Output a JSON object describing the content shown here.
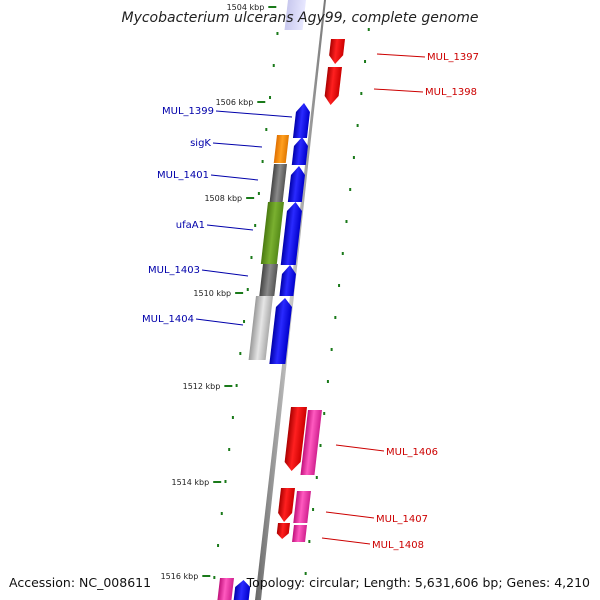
{
  "title": "Mycobacterium ulcerans Agy99, complete genome",
  "accession": "Accession: NC_008611",
  "summary": "Topology: circular; Length: 5,631,606 bp; Genes: 4,210",
  "colors": {
    "backbone": "#888888",
    "forward_gene": "#0000ee",
    "reverse_gene": "#e00000",
    "pink_gene": "#e0259b",
    "sigma_gene": "#ff8c00",
    "green_gene": "#5a9a1a",
    "gray_gene": "#666666",
    "lightgray_gene": "#bbbbbb",
    "tick": "#1a7a1a",
    "label_forward": "#0000aa",
    "label_reverse": "#cc0000"
  },
  "ticks": [
    {
      "label": "1504 kbp"
    },
    {
      "label": "1506 kbp"
    },
    {
      "label": "1508 kbp"
    },
    {
      "label": "1510 kbp"
    },
    {
      "label": "1512 kbp"
    },
    {
      "label": "1514 kbp"
    },
    {
      "label": "1516 kbp"
    }
  ],
  "labels": [
    {
      "text": "MUL_1397",
      "strand": "reverse"
    },
    {
      "text": "MUL_1398",
      "strand": "reverse"
    },
    {
      "text": "MUL_1399",
      "strand": "forward"
    },
    {
      "text": "sigK",
      "strand": "forward"
    },
    {
      "text": "MUL_1401",
      "strand": "forward"
    },
    {
      "text": "ufaA1",
      "strand": "forward"
    },
    {
      "text": "MUL_1403",
      "strand": "forward"
    },
    {
      "text": "MUL_1404",
      "strand": "forward"
    },
    {
      "text": "MUL_1406",
      "strand": "reverse"
    },
    {
      "text": "MUL_1407",
      "strand": "reverse"
    },
    {
      "text": "MUL_1408",
      "strand": "reverse"
    }
  ]
}
